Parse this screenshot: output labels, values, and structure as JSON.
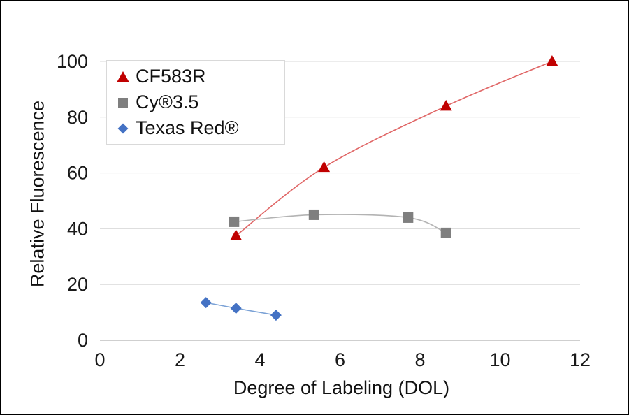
{
  "chart_data": {
    "type": "scatter",
    "title": "",
    "xlabel": "Degree of Labeling (DOL)",
    "ylabel": "Relative Fluorescence",
    "xlim": [
      0,
      12
    ],
    "ylim": [
      0,
      100
    ],
    "xticks": [
      0,
      2,
      4,
      6,
      8,
      10,
      12
    ],
    "yticks": [
      0,
      20,
      40,
      60,
      80,
      100
    ],
    "grid": "horizontal",
    "gridline_color": "#d9d9d9",
    "axis_line_color": "#bfbfbf",
    "tick_label_color": "#1a1a1a",
    "legend_position": "top-left",
    "series": [
      {
        "name": "CF583R",
        "marker": "triangle",
        "color": "#c00000",
        "trend_color": "#e06666",
        "points": [
          [
            3.4,
            37.5
          ],
          [
            5.6,
            62
          ],
          [
            8.65,
            84
          ],
          [
            11.3,
            100
          ]
        ]
      },
      {
        "name": "Cy®3.5",
        "marker": "square",
        "color": "#7f7f7f",
        "trend_color": "#b3b3b3",
        "points": [
          [
            3.35,
            42.5
          ],
          [
            5.35,
            45
          ],
          [
            7.7,
            44
          ],
          [
            8.65,
            38.5
          ]
        ]
      },
      {
        "name": "Texas Red®",
        "marker": "diamond",
        "color": "#4472c4",
        "trend_color": "#7ba2d6",
        "points": [
          [
            2.65,
            13.5
          ],
          [
            3.4,
            11.5
          ],
          [
            4.4,
            9
          ]
        ]
      }
    ]
  }
}
